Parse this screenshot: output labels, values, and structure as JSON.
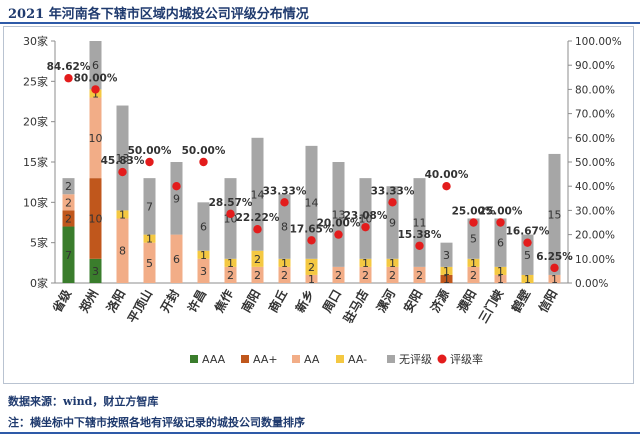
{
  "title": "2021 年河南各下辖市区域内城投公司评级分布情况",
  "source": "数据来源：wind，财立方智库",
  "note": "注：横坐标中下辖市按照各地有评级记录的城投公司数量排序",
  "chart_data": {
    "type": "bar",
    "stacked": true,
    "categories": [
      "省级",
      "郑州",
      "洛阳",
      "平顶山",
      "开封",
      "许昌",
      "焦作",
      "南阳",
      "商丘",
      "新乡",
      "周口",
      "驻马店",
      "漯河",
      "安阳",
      "济源",
      "濮阳",
      "三门峡",
      "鹤壁",
      "信阳"
    ],
    "series": [
      {
        "name": "AAA",
        "color": "#3a7d2c",
        "values": [
          7,
          3,
          0,
          0,
          0,
          0,
          0,
          0,
          0,
          0,
          0,
          0,
          0,
          0,
          0,
          0,
          0,
          0,
          0
        ]
      },
      {
        "name": "AA+",
        "color": "#c0571c",
        "values": [
          2,
          10,
          0,
          0,
          0,
          0,
          0,
          0,
          0,
          0,
          0,
          0,
          0,
          0,
          1,
          0,
          0,
          0,
          0
        ]
      },
      {
        "name": "AA",
        "color": "#f2ad87",
        "values": [
          2,
          10,
          8,
          5,
          6,
          3,
          2,
          2,
          2,
          1,
          2,
          2,
          2,
          2,
          0,
          2,
          1,
          0,
          1
        ]
      },
      {
        "name": "AA-",
        "color": "#f4c842",
        "values": [
          0,
          1,
          1,
          1,
          0,
          1,
          1,
          2,
          1,
          2,
          0,
          1,
          1,
          0,
          1,
          1,
          1,
          1,
          0
        ]
      },
      {
        "name": "无评级",
        "color": "#a6a6a6",
        "values": [
          2,
          6,
          13,
          7,
          9,
          6,
          10,
          14,
          8,
          14,
          13,
          10,
          9,
          11,
          3,
          5,
          6,
          5,
          15
        ]
      }
    ],
    "rate_series": {
      "name": "评级率",
      "color": "#e31c1c",
      "values": [
        84.62,
        80.0,
        45.83,
        50.0,
        40.0,
        50.0,
        28.57,
        22.22,
        33.33,
        17.65,
        20.0,
        23.08,
        33.33,
        15.38,
        40.0,
        25.0,
        25.0,
        16.67,
        6.25
      ],
      "labels": [
        "84.62%",
        "80.00%",
        "45.83%",
        "50.00%",
        "",
        "50.00%",
        "28.57%",
        "22.22%",
        "33.33%",
        "17.65%",
        "20.00%",
        "23.08%",
        "33.33%",
        "15.38%",
        "40.00%",
        "25.00%",
        "25.00%",
        "16.67%",
        "6.25%"
      ]
    },
    "left_axis": {
      "min": 0,
      "max": 30,
      "step": 5,
      "tick_labels": [
        "0家",
        "5家",
        "10家",
        "15家",
        "20家",
        "25家",
        "30家"
      ]
    },
    "right_axis": {
      "min": 0,
      "max": 100,
      "step": 10,
      "tick_labels": [
        "0.00%",
        "10.00%",
        "20.00%",
        "30.00%",
        "40.00%",
        "50.00%",
        "60.00%",
        "70.00%",
        "80.00%",
        "90.00%",
        "100.00%"
      ]
    },
    "legend_position": "bottom",
    "grid": false
  }
}
